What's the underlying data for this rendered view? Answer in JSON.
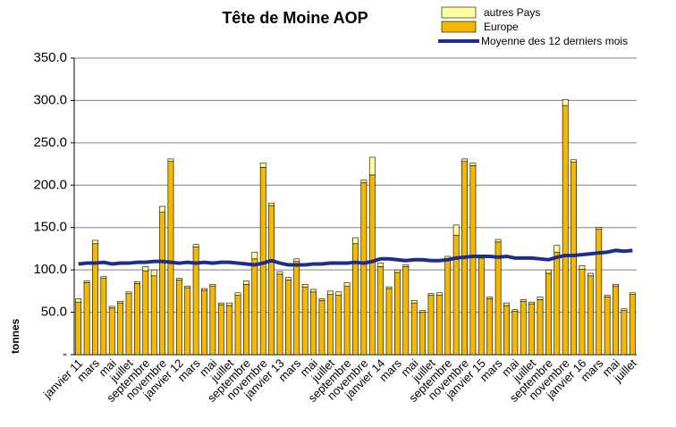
{
  "chart_data": {
    "type": "bar",
    "title": "Tête de Moine AOP",
    "y_label": "tonnes",
    "categories": [
      "janvier 11",
      null,
      "mars",
      null,
      "mai",
      null,
      "juillet",
      null,
      "septembre",
      null,
      "novembre",
      null,
      "janvier 12",
      null,
      "mars",
      null,
      "mai",
      null,
      "juillet",
      null,
      "septembre",
      null,
      "novembre",
      null,
      "janvier 13",
      null,
      "mars",
      null,
      "mai",
      null,
      "juillet",
      null,
      "septembre",
      null,
      "novembre",
      null,
      "janvier 14",
      null,
      "mars",
      null,
      "mai",
      null,
      "juillet",
      null,
      "septembre",
      null,
      "novembre",
      null,
      "janvier 15",
      null,
      "mars",
      null,
      "mai",
      null,
      "juillet",
      null,
      "septembre",
      null,
      "novembre",
      null,
      "janvier 16",
      null,
      "mars",
      null,
      "mai",
      null,
      "juillet"
    ],
    "series": [
      {
        "name": "Europe",
        "color": "#f5b800",
        "stack": true,
        "values": [
          62,
          85,
          131,
          90,
          55,
          61,
          72,
          84,
          99,
          93,
          168,
          228,
          88,
          79,
          127,
          76,
          81,
          59,
          58,
          70,
          83,
          113,
          221,
          176,
          95,
          88,
          110,
          80,
          74,
          64,
          71,
          70,
          81,
          131,
          203,
          212,
          104,
          78,
          97,
          104,
          61,
          50,
          70,
          70,
          113,
          141,
          228,
          223,
          114,
          66,
          133,
          58,
          51,
          63,
          60,
          65,
          96,
          121,
          294,
          227,
          101,
          93,
          148,
          68,
          81,
          52,
          71
        ]
      },
      {
        "name": "autres Pays",
        "color": "#ffffa0",
        "stack": true,
        "values": [
          4,
          2,
          4,
          2,
          2,
          2,
          2,
          2,
          5,
          7,
          7,
          3,
          2,
          2,
          3,
          2,
          2,
          2,
          3,
          3,
          4,
          8,
          5,
          3,
          3,
          3,
          3,
          3,
          3,
          2,
          4,
          4,
          4,
          7,
          3,
          21,
          4,
          2,
          3,
          2,
          3,
          2,
          2,
          3,
          3,
          12,
          3,
          3,
          2,
          2,
          3,
          3,
          2,
          2,
          2,
          3,
          4,
          8,
          7,
          3,
          4,
          3,
          2,
          2,
          2,
          2,
          2
        ]
      },
      {
        "name": "Moyenne des 12 derniers mois",
        "color": "#1f2d8a",
        "kind": "line",
        "values": [
          107,
          108,
          108,
          109,
          107,
          108,
          108,
          109,
          109,
          110,
          110,
          109,
          108,
          109,
          108,
          109,
          108,
          109,
          109,
          108,
          107,
          106,
          108,
          111,
          108,
          106,
          106,
          106,
          107,
          107,
          108,
          108,
          108,
          109,
          108,
          110,
          113,
          113,
          112,
          111,
          112,
          112,
          111,
          111,
          112,
          114,
          115,
          116,
          116,
          116,
          115,
          116,
          114,
          114,
          114,
          113,
          112,
          115,
          117,
          117,
          118,
          119,
          120,
          121,
          123,
          122,
          123
        ]
      }
    ],
    "ylim": [
      0,
      350
    ],
    "yticks": [
      {
        "value": 0,
        "label": "-"
      },
      {
        "value": 50,
        "label": "50.0"
      },
      {
        "value": 100,
        "label": "100.0"
      },
      {
        "value": 150,
        "label": "150.0"
      },
      {
        "value": 200,
        "label": "200.0"
      },
      {
        "value": 250,
        "label": "250.0"
      },
      {
        "value": 300,
        "label": "300.0"
      },
      {
        "value": 350,
        "label": "350.0"
      }
    ],
    "grid": true,
    "legend": "top-right"
  }
}
